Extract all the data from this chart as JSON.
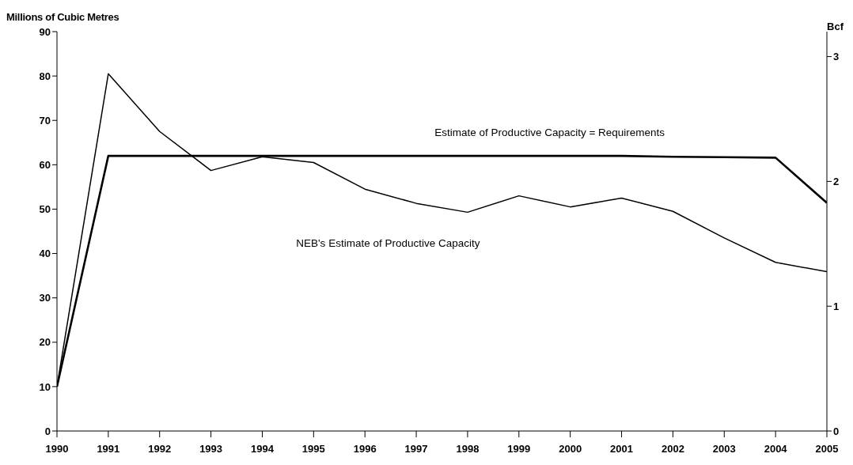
{
  "chart_data": {
    "type": "line",
    "ylabel": "Millions of Cubic Metres",
    "y2label": "Bcf",
    "x": [
      1990,
      1991,
      1992,
      1993,
      1994,
      1995,
      1996,
      1997,
      1998,
      1999,
      2000,
      2001,
      2002,
      2003,
      2004,
      2005
    ],
    "series": [
      {
        "name": "Estimate of Productive Capacity = Requirements",
        "color": "#000000",
        "values": [
          10,
          62,
          62,
          62,
          62,
          62,
          62,
          62,
          62,
          62,
          62,
          62,
          61.8,
          61.7,
          61.6,
          51.4
        ]
      },
      {
        "name": "NEB's Estimate of Productive Capacity",
        "color": "#000000",
        "values": [
          10,
          80.5,
          67.5,
          58.7,
          61.8,
          60.5,
          54.5,
          51.3,
          49.3,
          53,
          50.5,
          52.5,
          49.5,
          43.5,
          38,
          35.9
        ]
      }
    ],
    "xlim": [
      1990,
      2005
    ],
    "xticks": [
      1990,
      1991,
      1992,
      1993,
      1994,
      1995,
      1996,
      1997,
      1998,
      1999,
      2000,
      2001,
      2002,
      2003,
      2004,
      2005
    ],
    "ylim": [
      0,
      90
    ],
    "yticks": [
      0,
      10,
      20,
      30,
      40,
      50,
      60,
      70,
      80,
      90
    ],
    "y2lim": [
      0,
      3.2
    ],
    "y2ticks": [
      0,
      1,
      2,
      3
    ],
    "grid": false,
    "marker": "none",
    "line_style": "solid"
  }
}
